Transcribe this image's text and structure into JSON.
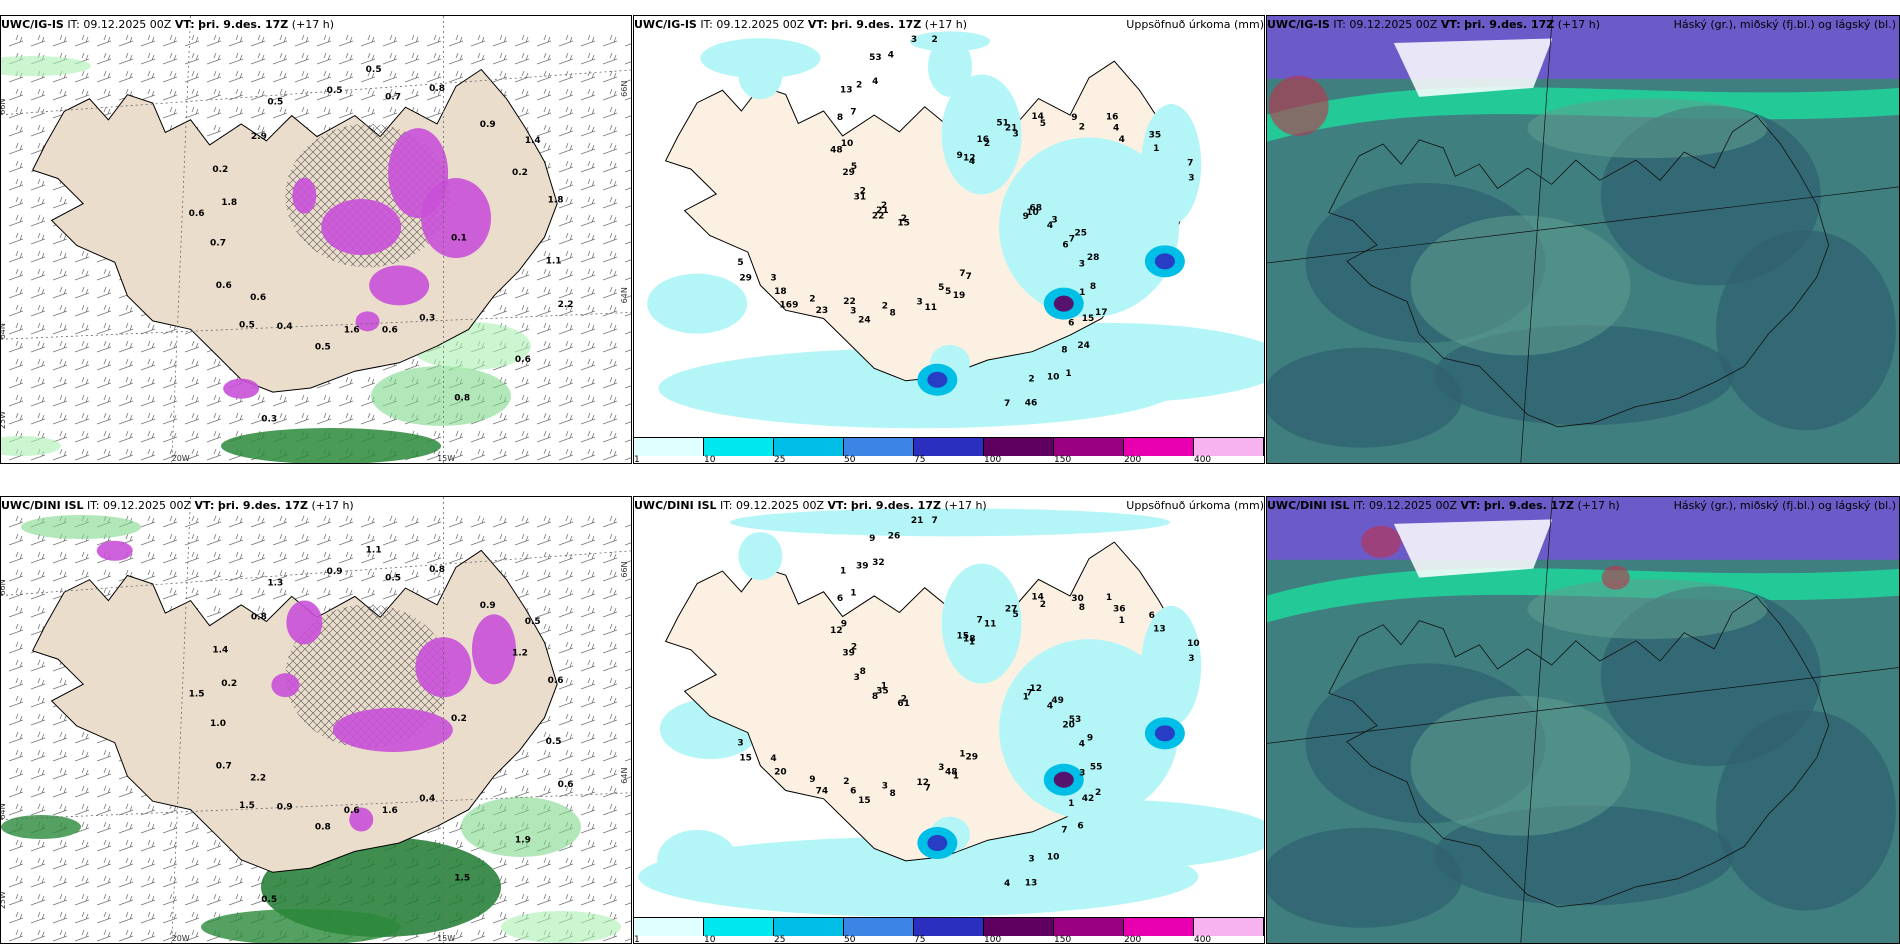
{
  "rows": [
    {
      "model": "UWC/IG-IS",
      "it_label": "IT:",
      "it_value": "09.12.2025 00Z",
      "vt_label": "VT:",
      "vt_value": "þri. 9.des. 17Z",
      "lead": "(+17 h)",
      "precip_title": "Uppsöfnuð úrkoma (mm)",
      "cloud_title": "Háský (gr.), miðský (fj.bl.) og lágský (bl.)",
      "axis": {
        "lat_top": "66N",
        "lat_bot": "64N",
        "lon_left": "20W",
        "lon_right": "15W",
        "lon_25": "25W"
      },
      "ice_labels": [
        "0.1",
        "0.5",
        "0.5",
        "0.3",
        "0.6",
        "1.4",
        "0.5",
        "0.5",
        "2.2",
        "0.6",
        "0.8",
        "0.6",
        "0.2",
        "1.8",
        "0.4",
        "0.5",
        "0.6",
        "0.7",
        "0.9",
        "1.6",
        "2.9",
        "1.1",
        "0.6",
        "0.7",
        "0.8",
        "1.8",
        "0.2",
        "0.3"
      ],
      "precip_labels": [
        "9",
        "22",
        "4",
        "6",
        "2",
        "4",
        "5",
        "4",
        "6",
        "3",
        "3",
        "2",
        "5",
        "3",
        "2",
        "2",
        "1",
        "2",
        "2",
        "7",
        "7",
        "4",
        "2",
        "2",
        "8",
        "2",
        "1",
        "3",
        "4",
        "3",
        "5",
        "5",
        "7",
        "10",
        "10",
        "3",
        "12",
        "15",
        "21",
        "4",
        "5",
        "2",
        "7",
        "18",
        "21",
        "10",
        "29",
        "7",
        "8",
        "3",
        "8",
        "15",
        "9",
        "7",
        "8",
        "3",
        "23",
        "16",
        "24",
        "31",
        "35",
        "11",
        "53",
        "28",
        "29",
        "14",
        "46",
        "48",
        "68",
        "24",
        "9",
        "17",
        "22",
        "16",
        "19",
        "13",
        "25",
        "169",
        "51",
        "1"
      ]
    },
    {
      "model": "UWC/DINI ISL",
      "it_label": "IT:",
      "it_value": "09.12.2025 00Z",
      "vt_label": "VT:",
      "vt_value": "þri. 9.des. 17Z",
      "lead": "(+17 h)",
      "precip_title": "Uppsöfnuð úrkoma (mm)",
      "cloud_title": "Háský (gr.), miðský (fj.bl.) og lágský (bl.)",
      "axis": {
        "lat_top": "66N",
        "lat_bot": "64N",
        "lon_left": "20W",
        "lon_right": "15W",
        "lon_25": "25W"
      },
      "ice_labels": [
        "0.2",
        "1.5",
        "1.1",
        "0.4",
        "1.5",
        "0.5",
        "0.8",
        "1.3",
        "0.6",
        "0.7",
        "0.8",
        "1.6",
        "1.4",
        "0.6",
        "0.9",
        "0.9",
        "1.9",
        "1.0",
        "0.9",
        "0.6",
        "0.8",
        "0.5",
        "2.2",
        "0.5",
        "1.5",
        "0.2",
        "1.2",
        "0.5"
      ],
      "precip_labels": [
        "1",
        "2",
        "1",
        "1",
        "1",
        "1",
        "3",
        "32",
        "20",
        "4",
        "5",
        "3",
        "2",
        "3",
        "3",
        "7",
        "3",
        "2",
        "8",
        "1",
        "1",
        "4",
        "9",
        "11",
        "7",
        "8",
        "13",
        "12",
        "26",
        "4",
        "3",
        "2",
        "4",
        "9",
        "7",
        "6",
        "18",
        "42",
        "35",
        "36",
        "48",
        "39",
        "53",
        "20",
        "27",
        "10",
        "39",
        "10",
        "8",
        "21",
        "55",
        "61",
        "30",
        "29",
        "6",
        "49",
        "74",
        "7",
        "6",
        "3",
        "6",
        "7",
        "9",
        "9",
        "15",
        "14",
        "13",
        "12",
        "12",
        "15",
        "15",
        "2",
        "8",
        "1",
        "1",
        "1"
      ]
    }
  ],
  "colorbar": {
    "ticks": [
      "1",
      "10",
      "25",
      "50",
      "75",
      "100",
      "150",
      "200",
      "400"
    ],
    "colors": [
      "#e0ffff",
      "#00e8ee",
      "#00bfe6",
      "#3c84e6",
      "#2b2fbf",
      "#5f0060",
      "#9a0082",
      "#e800b0",
      "#f7b3f0"
    ]
  }
}
